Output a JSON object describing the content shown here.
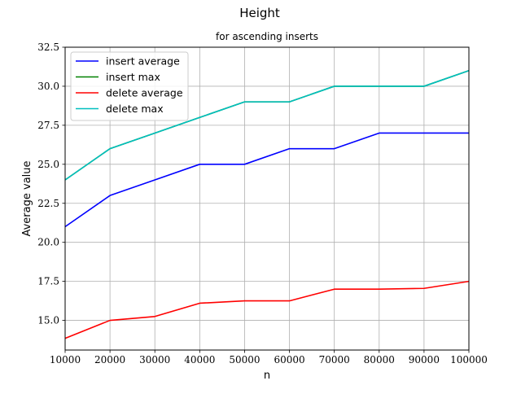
{
  "chart_data": {
    "type": "line",
    "title": "Height",
    "subtitle": "for ascending inserts",
    "xlabel": "n",
    "ylabel": "Average value",
    "xlim": [
      10000,
      100000
    ],
    "ylim": [
      13.1,
      32.5
    ],
    "xticks": [
      10000,
      20000,
      30000,
      40000,
      50000,
      60000,
      70000,
      80000,
      90000,
      100000
    ],
    "yticks": [
      15.0,
      17.5,
      20.0,
      22.5,
      25.0,
      27.5,
      30.0,
      32.5
    ],
    "xtick_labels": [
      "10000",
      "20000",
      "30000",
      "40000",
      "50000",
      "60000",
      "70000",
      "80000",
      "90000",
      "100000"
    ],
    "ytick_labels": [
      "15.0",
      "17.5",
      "20.0",
      "22.5",
      "25.0",
      "27.5",
      "30.0",
      "32.5"
    ],
    "grid": true,
    "legend_position": "top-left",
    "x": [
      10000,
      20000,
      30000,
      40000,
      50000,
      60000,
      70000,
      80000,
      90000,
      100000
    ],
    "series": [
      {
        "name": "insert average",
        "color": "#0000ff",
        "values": [
          21,
          23,
          24,
          25,
          25,
          26,
          26,
          27,
          27,
          27
        ]
      },
      {
        "name": "insert max",
        "color": "#008000",
        "values": [
          24,
          26,
          27,
          28,
          29,
          29,
          30,
          30,
          30,
          31
        ]
      },
      {
        "name": "delete average",
        "color": "#ff0000",
        "values": [
          13.85,
          15.0,
          15.25,
          16.1,
          16.25,
          16.25,
          17.0,
          17.0,
          17.05,
          17.5
        ]
      },
      {
        "name": "delete max",
        "color": "#00bfbf",
        "values": [
          24,
          26,
          27,
          28,
          29,
          29,
          30,
          30,
          30,
          31
        ]
      }
    ]
  }
}
